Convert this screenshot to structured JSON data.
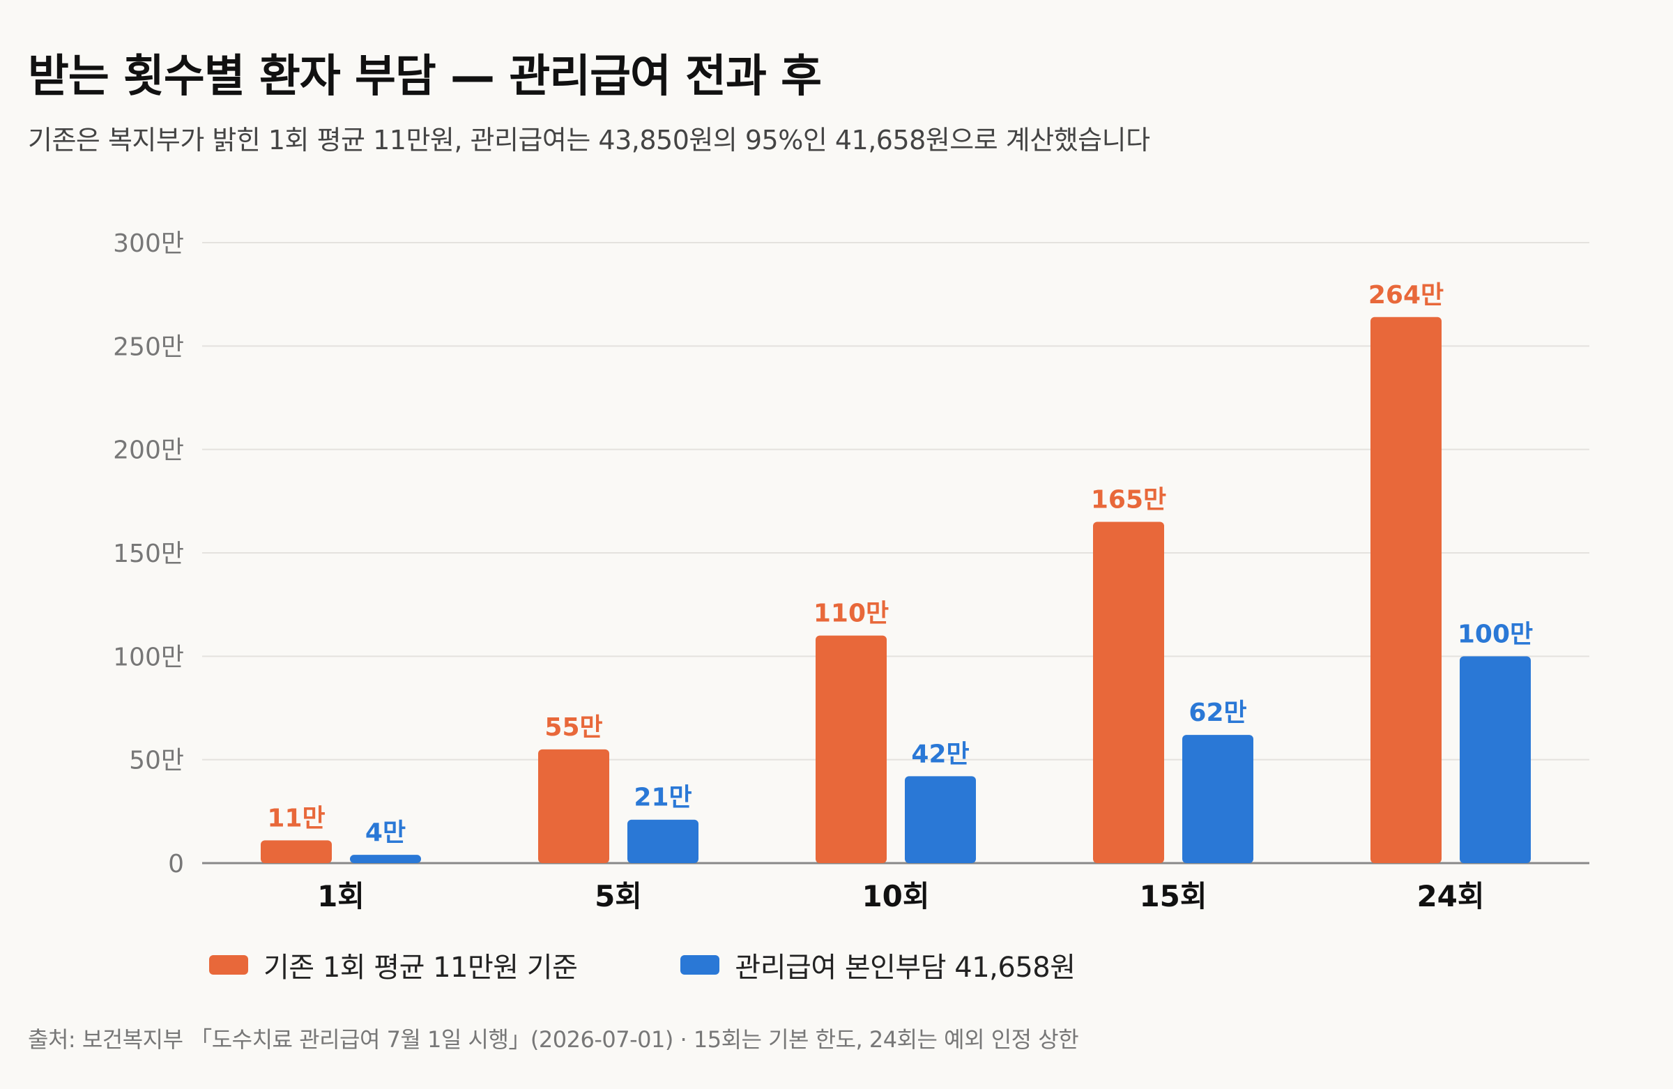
{
  "title": "받는 횟수별 환자 부담 — 관리급여 전과 후",
  "subtitle": "기존은 복지부가 밝힌 1회 평균 11만원, 관리급여는 43,850원의 95%인 41,658원으로 계산했습니다",
  "footer": "출처: 보건복지부 「도수치료 관리급여 7월 1일 시행」(2026-07-01) · 15회는 기본 한도, 24회는 예외 인정 상한",
  "colors": {
    "orange": "#e8683a",
    "blue": "#2a78d6",
    "grid": "#e4e2de",
    "axis": "#888888"
  },
  "chart_data": {
    "type": "bar",
    "categories": [
      "1회",
      "5회",
      "10회",
      "15회",
      "24회"
    ],
    "series": [
      {
        "name": "기존 1회 평균 11만원 기준",
        "values": [
          11,
          55,
          110,
          165,
          264
        ],
        "labels": [
          "11만",
          "55만",
          "110만",
          "165만",
          "264만"
        ],
        "color": "#e8683a"
      },
      {
        "name": "관리급여 본인부담 41,658원",
        "values": [
          4,
          21,
          42,
          62,
          100
        ],
        "labels": [
          "4만",
          "21만",
          "42만",
          "62만",
          "100만"
        ],
        "color": "#2a78d6"
      }
    ],
    "ylim": [
      0,
      300
    ],
    "yticks": [
      0,
      50,
      100,
      150,
      200,
      250,
      300
    ],
    "ytick_labels": [
      "0",
      "50만",
      "100만",
      "150만",
      "200만",
      "250만",
      "300만"
    ],
    "grid": true,
    "legend_position": "bottom-left",
    "xlabel": "",
    "ylabel": ""
  }
}
